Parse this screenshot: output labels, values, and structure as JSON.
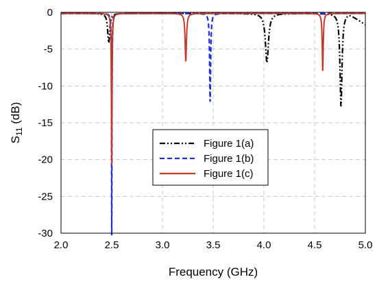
{
  "chart_data": {
    "type": "line",
    "xlabel": "Frequency (GHz)",
    "ylabel": {
      "base": "S",
      "sub": "11",
      "unit": " (dB)"
    },
    "xlim": [
      2.0,
      5.0
    ],
    "ylim": [
      -30,
      0
    ],
    "x_ticks": [
      "2.0",
      "2.5",
      "3.0",
      "3.5",
      "4.0",
      "4.5",
      "5.0"
    ],
    "y_ticks": [
      "0",
      "-5",
      "-10",
      "-15",
      "-20",
      "-25",
      "-30"
    ],
    "grid": true,
    "legend_position": "center",
    "series": [
      {
        "name": "Figure 1(a)",
        "color": "#000000",
        "dash": "dash-dot-dot",
        "resonances": [
          {
            "f": 2.47,
            "depth": 4.0,
            "width": 0.012
          },
          {
            "f": 4.03,
            "depth": 6.7,
            "width": 0.018
          },
          {
            "f": 4.76,
            "depth": 12.6,
            "width": 0.012
          }
        ],
        "tail": {
          "start": 4.84,
          "end_value": -1.5
        }
      },
      {
        "name": "Figure 1(b)",
        "color": "#1f2fd6",
        "dash": "dashed",
        "resonances": [
          {
            "f": 2.5,
            "depth": 30.5,
            "width": 0.0025
          },
          {
            "f": 3.47,
            "depth": 12.0,
            "width": 0.006
          }
        ]
      },
      {
        "name": "Figure 1(c)",
        "color": "#c0392b",
        "dash": "solid",
        "resonances": [
          {
            "f": 2.5,
            "depth": 20.5,
            "width": 0.004
          },
          {
            "f": 3.23,
            "depth": 6.5,
            "width": 0.008
          },
          {
            "f": 4.58,
            "depth": 7.8,
            "width": 0.006
          }
        ]
      }
    ]
  }
}
